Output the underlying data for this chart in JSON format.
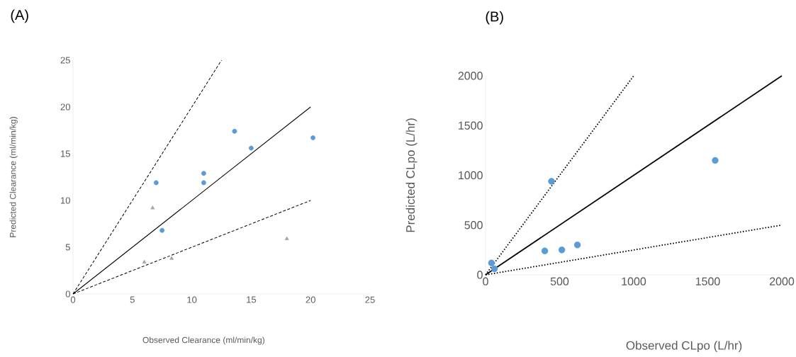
{
  "chart_data": [
    {
      "type": "scatter",
      "title": "(A)",
      "xlabel": "Observed Clearance (ml/min/kg)",
      "ylabel": "Predicted Clearance (ml/min/kg)",
      "xlim": [
        0,
        25
      ],
      "ylim": [
        0,
        25
      ],
      "xticks": [
        0,
        5,
        10,
        15,
        20,
        25
      ],
      "yticks": [
        0,
        5,
        10,
        15,
        20,
        25
      ],
      "series": [
        {
          "type": "scatter",
          "color": "#5b9bd5",
          "marker": "circle",
          "x": [
            7,
            7.5,
            11,
            11,
            13.6,
            15,
            20.2
          ],
          "values": [
            11.9,
            6.8,
            12.9,
            11.9,
            17.4,
            15.6,
            16.7
          ]
        },
        {
          "type": "scatter",
          "color": "#a5a5a5",
          "marker": "triangle",
          "x": [
            6,
            6.7,
            8.3,
            18
          ],
          "values": [
            3.4,
            9.2,
            3.8,
            5.9
          ]
        },
        {
          "type": "line",
          "color": "#000000",
          "line_style": "solid",
          "x": [
            0,
            20
          ],
          "values": [
            0,
            20
          ]
        },
        {
          "type": "line",
          "color": "#000000",
          "line_style": "dashed",
          "x": [
            0,
            12.5
          ],
          "values": [
            0,
            25
          ]
        },
        {
          "type": "line",
          "color": "#000000",
          "line_style": "dashed",
          "x": [
            0,
            20
          ],
          "values": [
            0,
            10
          ]
        }
      ]
    },
    {
      "type": "scatter",
      "title": "(B)",
      "xlabel": "Observed CLpo (L/hr)",
      "ylabel": "Predicted CLpo (L/hr)",
      "xlim": [
        0,
        2000
      ],
      "ylim": [
        0,
        2000
      ],
      "xticks": [
        0,
        500,
        1000,
        1500,
        2000
      ],
      "yticks": [
        0,
        500,
        1000,
        1500,
        2000
      ],
      "series": [
        {
          "type": "line",
          "color": "#000000",
          "line_style": "solid",
          "x": [
            0,
            2000
          ],
          "values": [
            0,
            2000
          ]
        },
        {
          "type": "line",
          "color": "#000000",
          "line_style": "dotted",
          "x": [
            0,
            1000
          ],
          "values": [
            0,
            2000
          ]
        },
        {
          "type": "line",
          "color": "#000000",
          "line_style": "dotted",
          "x": [
            0,
            2000
          ],
          "values": [
            0,
            500
          ]
        },
        {
          "type": "scatter",
          "color": "#5b9bd5",
          "marker": "circle",
          "x": [
            40,
            60,
            400,
            515,
            620,
            445,
            1550
          ],
          "values": [
            120,
            60,
            240,
            250,
            300,
            940,
            1150
          ]
        }
      ]
    }
  ]
}
